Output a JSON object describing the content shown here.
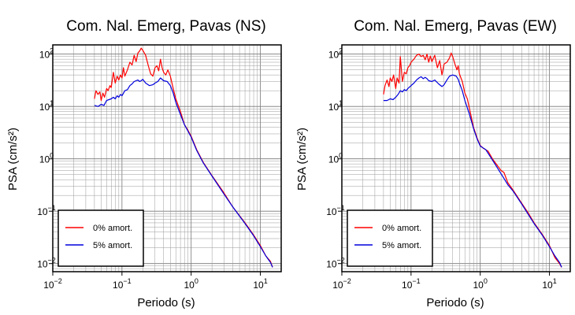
{
  "chart_data": [
    {
      "type": "line",
      "title": "Com. Nal. Emerg, Pavas (NS)",
      "xlabel": "Periodo (s)",
      "ylabel": "PSA (cm/s²)",
      "xscale": "log",
      "yscale": "log",
      "xlim": [
        0.01,
        20
      ],
      "ylim": [
        0.007,
        150
      ],
      "grid": true,
      "legend_position": "bottom-left",
      "xticks": [
        {
          "v": 0.01,
          "base": "10",
          "exp": "−2"
        },
        {
          "v": 0.1,
          "base": "10",
          "exp": "−1"
        },
        {
          "v": 1,
          "base": "10",
          "exp": "0"
        },
        {
          "v": 10,
          "base": "10",
          "exp": "1"
        }
      ],
      "yticks": [
        {
          "v": 0.01,
          "base": "10",
          "exp": "−2"
        },
        {
          "v": 0.1,
          "base": "10",
          "exp": "−1"
        },
        {
          "v": 1,
          "base": "10",
          "exp": "0"
        },
        {
          "v": 10,
          "base": "10",
          "exp": "1"
        },
        {
          "v": 100,
          "base": "10",
          "exp": "2"
        }
      ],
      "series": [
        {
          "name": "0% amort.",
          "color": "#ff0000",
          "points": [
            [
              0.04,
              14
            ],
            [
              0.042,
              20
            ],
            [
              0.045,
              17
            ],
            [
              0.048,
              19
            ],
            [
              0.05,
              13
            ],
            [
              0.053,
              18
            ],
            [
              0.056,
              15
            ],
            [
              0.06,
              22
            ],
            [
              0.063,
              20
            ],
            [
              0.067,
              25
            ],
            [
              0.07,
              23
            ],
            [
              0.075,
              45
            ],
            [
              0.08,
              28
            ],
            [
              0.085,
              38
            ],
            [
              0.09,
              32
            ],
            [
              0.095,
              40
            ],
            [
              0.1,
              35
            ],
            [
              0.105,
              55
            ],
            [
              0.11,
              38
            ],
            [
              0.12,
              50
            ],
            [
              0.13,
              70
            ],
            [
              0.14,
              62
            ],
            [
              0.15,
              95
            ],
            [
              0.16,
              72
            ],
            [
              0.17,
              105
            ],
            [
              0.18,
              115
            ],
            [
              0.19,
              130
            ],
            [
              0.2,
              118
            ],
            [
              0.22,
              95
            ],
            [
              0.24,
              60
            ],
            [
              0.26,
              42
            ],
            [
              0.28,
              38
            ],
            [
              0.3,
              55
            ],
            [
              0.32,
              60
            ],
            [
              0.34,
              48
            ],
            [
              0.36,
              80
            ],
            [
              0.38,
              55
            ],
            [
              0.4,
              45
            ],
            [
              0.43,
              40
            ],
            [
              0.46,
              50
            ],
            [
              0.5,
              38
            ],
            [
              0.55,
              22
            ],
            [
              0.6,
              14
            ],
            [
              0.7,
              8
            ],
            [
              0.8,
              4.5
            ],
            [
              0.9,
              3.5
            ],
            [
              1,
              2.7
            ],
            [
              1.2,
              1.5
            ],
            [
              1.5,
              0.85
            ],
            [
              2,
              0.48
            ],
            [
              3,
              0.22
            ],
            [
              4,
              0.12
            ],
            [
              6,
              0.06
            ],
            [
              8,
              0.035
            ],
            [
              10,
              0.022
            ],
            [
              12,
              0.014
            ],
            [
              14,
              0.011
            ],
            [
              15,
              0.0085
            ]
          ]
        },
        {
          "name": "5% amort.",
          "color": "#0000dd",
          "points": [
            [
              0.04,
              10.5
            ],
            [
              0.045,
              10
            ],
            [
              0.05,
              11
            ],
            [
              0.055,
              10.5
            ],
            [
              0.06,
              13
            ],
            [
              0.065,
              13.5
            ],
            [
              0.07,
              14
            ],
            [
              0.075,
              15
            ],
            [
              0.08,
              14
            ],
            [
              0.085,
              16
            ],
            [
              0.09,
              15
            ],
            [
              0.095,
              17
            ],
            [
              0.1,
              16
            ],
            [
              0.11,
              20
            ],
            [
              0.12,
              21
            ],
            [
              0.13,
              25
            ],
            [
              0.14,
              27
            ],
            [
              0.15,
              30
            ],
            [
              0.16,
              31
            ],
            [
              0.17,
              32
            ],
            [
              0.18,
              30
            ],
            [
              0.19,
              31
            ],
            [
              0.2,
              33
            ],
            [
              0.22,
              28
            ],
            [
              0.25,
              25
            ],
            [
              0.28,
              26
            ],
            [
              0.3,
              28
            ],
            [
              0.33,
              30
            ],
            [
              0.36,
              35
            ],
            [
              0.4,
              31
            ],
            [
              0.45,
              30
            ],
            [
              0.5,
              25
            ],
            [
              0.55,
              18
            ],
            [
              0.6,
              12
            ],
            [
              0.7,
              7
            ],
            [
              0.8,
              4.5
            ],
            [
              1,
              2.6
            ],
            [
              1.2,
              1.45
            ],
            [
              1.5,
              0.83
            ],
            [
              2,
              0.47
            ],
            [
              3,
              0.21
            ],
            [
              4,
              0.12
            ],
            [
              6,
              0.058
            ],
            [
              8,
              0.034
            ],
            [
              10,
              0.021
            ],
            [
              12,
              0.014
            ],
            [
              14,
              0.0105
            ],
            [
              15,
              0.0085
            ]
          ]
        }
      ]
    },
    {
      "type": "line",
      "title": "Com. Nal. Emerg, Pavas (EW)",
      "xlabel": "Periodo (s)",
      "ylabel": "PSA (cm/s²)",
      "xscale": "log",
      "yscale": "log",
      "xlim": [
        0.01,
        20
      ],
      "ylim": [
        0.007,
        150
      ],
      "grid": true,
      "legend_position": "bottom-left",
      "xticks": [
        {
          "v": 0.01,
          "base": "10",
          "exp": "−2"
        },
        {
          "v": 0.1,
          "base": "10",
          "exp": "−1"
        },
        {
          "v": 1,
          "base": "10",
          "exp": "0"
        },
        {
          "v": 10,
          "base": "10",
          "exp": "1"
        }
      ],
      "yticks": [
        {
          "v": 0.01,
          "base": "10",
          "exp": "−2"
        },
        {
          "v": 0.1,
          "base": "10",
          "exp": "−1"
        },
        {
          "v": 1,
          "base": "10",
          "exp": "0"
        },
        {
          "v": 10,
          "base": "10",
          "exp": "1"
        },
        {
          "v": 100,
          "base": "10",
          "exp": "2"
        }
      ],
      "series": [
        {
          "name": "0% amort.",
          "color": "#ff0000",
          "points": [
            [
              0.04,
              17
            ],
            [
              0.042,
              25
            ],
            [
              0.045,
              32
            ],
            [
              0.048,
              24
            ],
            [
              0.05,
              35
            ],
            [
              0.053,
              30
            ],
            [
              0.056,
              40
            ],
            [
              0.06,
              22
            ],
            [
              0.063,
              35
            ],
            [
              0.067,
              28
            ],
            [
              0.07,
              90
            ],
            [
              0.075,
              30
            ],
            [
              0.08,
              45
            ],
            [
              0.085,
              42
            ],
            [
              0.09,
              55
            ],
            [
              0.095,
              60
            ],
            [
              0.1,
              70
            ],
            [
              0.11,
              80
            ],
            [
              0.12,
              95
            ],
            [
              0.13,
              100
            ],
            [
              0.14,
              90
            ],
            [
              0.15,
              95
            ],
            [
              0.16,
              78
            ],
            [
              0.17,
              100
            ],
            [
              0.18,
              70
            ],
            [
              0.19,
              92
            ],
            [
              0.2,
              72
            ],
            [
              0.22,
              95
            ],
            [
              0.24,
              55
            ],
            [
              0.26,
              75
            ],
            [
              0.28,
              40
            ],
            [
              0.3,
              65
            ],
            [
              0.33,
              70
            ],
            [
              0.36,
              85
            ],
            [
              0.38,
              105
            ],
            [
              0.4,
              90
            ],
            [
              0.43,
              65
            ],
            [
              0.46,
              50
            ],
            [
              0.48,
              60
            ],
            [
              0.5,
              42
            ],
            [
              0.55,
              30
            ],
            [
              0.6,
              18
            ],
            [
              0.65,
              14
            ],
            [
              0.7,
              9
            ],
            [
              0.8,
              4
            ],
            [
              0.9,
              2.5
            ],
            [
              1,
              1.8
            ],
            [
              1.1,
              1.6
            ],
            [
              1.3,
              1.4
            ],
            [
              1.5,
              1.0
            ],
            [
              1.7,
              0.8
            ],
            [
              2,
              0.6
            ],
            [
              2.2,
              0.55
            ],
            [
              2.5,
              0.35
            ],
            [
              3,
              0.25
            ],
            [
              4,
              0.14
            ],
            [
              5,
              0.09
            ],
            [
              6,
              0.06
            ],
            [
              8,
              0.035
            ],
            [
              10,
              0.022
            ],
            [
              12,
              0.013
            ],
            [
              14,
              0.01
            ],
            [
              15,
              0.0085
            ]
          ]
        },
        {
          "name": "5% amort.",
          "color": "#0000dd",
          "points": [
            [
              0.04,
              13
            ],
            [
              0.045,
              13
            ],
            [
              0.05,
              14
            ],
            [
              0.055,
              13.5
            ],
            [
              0.06,
              15
            ],
            [
              0.065,
              17
            ],
            [
              0.07,
              20
            ],
            [
              0.075,
              19
            ],
            [
              0.08,
              21
            ],
            [
              0.085,
              20
            ],
            [
              0.09,
              22
            ],
            [
              0.1,
              25
            ],
            [
              0.11,
              28
            ],
            [
              0.12,
              32
            ],
            [
              0.13,
              35
            ],
            [
              0.14,
              37
            ],
            [
              0.15,
              34
            ],
            [
              0.16,
              36
            ],
            [
              0.17,
              34
            ],
            [
              0.18,
              31
            ],
            [
              0.2,
              30
            ],
            [
              0.22,
              32
            ],
            [
              0.25,
              27
            ],
            [
              0.28,
              24
            ],
            [
              0.3,
              26
            ],
            [
              0.33,
              32
            ],
            [
              0.36,
              38
            ],
            [
              0.4,
              40
            ],
            [
              0.45,
              38
            ],
            [
              0.48,
              33
            ],
            [
              0.5,
              28
            ],
            [
              0.55,
              20
            ],
            [
              0.6,
              13
            ],
            [
              0.7,
              7
            ],
            [
              0.8,
              3.8
            ],
            [
              0.9,
              2.4
            ],
            [
              1,
              1.75
            ],
            [
              1.2,
              1.5
            ],
            [
              1.5,
              0.95
            ],
            [
              2,
              0.52
            ],
            [
              2.5,
              0.32
            ],
            [
              3,
              0.24
            ],
            [
              4,
              0.135
            ],
            [
              6,
              0.058
            ],
            [
              8,
              0.034
            ],
            [
              10,
              0.021
            ],
            [
              12,
              0.014
            ],
            [
              14,
              0.0105
            ],
            [
              15,
              0.0085
            ]
          ]
        }
      ]
    }
  ]
}
